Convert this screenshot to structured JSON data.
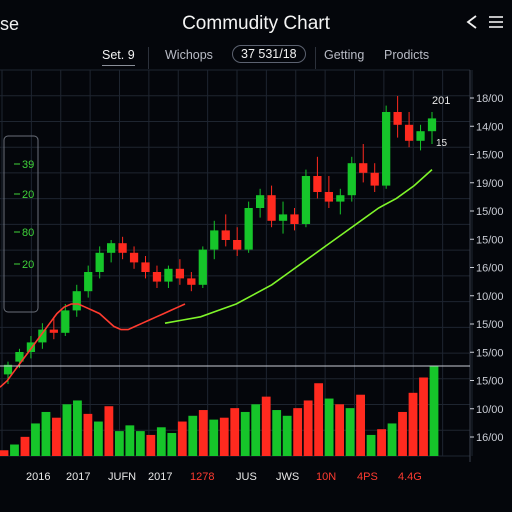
{
  "header": {
    "back_text": "se",
    "title": "Commudity Chart",
    "share_icon": "share-icon",
    "menu_icon": "menu-icon"
  },
  "tabs": [
    {
      "label": "Set.   9"
    },
    {
      "label": "Wichops"
    },
    {
      "label": "37 531/18"
    },
    {
      "label": "Getting"
    },
    {
      "label": "Prodicts"
    }
  ],
  "chart_data": {
    "type": "candlestick",
    "x_tick_labels": [
      {
        "text": "2016",
        "color": "#e8e8e8"
      },
      {
        "text": "2017",
        "color": "#e8e8e8"
      },
      {
        "text": "JUFN",
        "color": "#e8e8e8"
      },
      {
        "text": "2017",
        "color": "#e8e8e8"
      },
      {
        "text": "1278",
        "color": "#ff3b30"
      },
      {
        "text": "JUS",
        "color": "#e8e8e8"
      },
      {
        "text": "JWS",
        "color": "#e8e8e8"
      },
      {
        "text": "10N",
        "color": "#ff3b30"
      },
      {
        "text": "4PS",
        "color": "#ff3b30"
      },
      {
        "text": "4.4G",
        "color": "#ff3b30"
      }
    ],
    "y_tick_labels": [
      "18/00",
      "14/00",
      "15/00",
      "19/00",
      "15/00",
      "15/00",
      "16/00",
      "10/00",
      "15/00",
      "15/00",
      "15/00",
      "10/00",
      "16/00"
    ],
    "left_panel_labels": [
      "39",
      "20",
      "80",
      "20"
    ],
    "price_marker": "201",
    "price_marker2": "15",
    "ylim": [
      0,
      100
    ],
    "candles": [
      {
        "o": 8,
        "h": 12,
        "l": 5,
        "c": 11
      },
      {
        "o": 12,
        "h": 16,
        "l": 10,
        "c": 15
      },
      {
        "o": 15,
        "h": 20,
        "l": 13,
        "c": 18
      },
      {
        "o": 18,
        "h": 24,
        "l": 16,
        "c": 22
      },
      {
        "o": 22,
        "h": 26,
        "l": 19,
        "c": 21
      },
      {
        "o": 21,
        "h": 30,
        "l": 20,
        "c": 28
      },
      {
        "o": 28,
        "h": 36,
        "l": 26,
        "c": 34
      },
      {
        "o": 34,
        "h": 42,
        "l": 32,
        "c": 40
      },
      {
        "o": 40,
        "h": 48,
        "l": 38,
        "c": 46
      },
      {
        "o": 46,
        "h": 50,
        "l": 43,
        "c": 49
      },
      {
        "o": 49,
        "h": 51,
        "l": 44,
        "c": 46
      },
      {
        "o": 46,
        "h": 48,
        "l": 41,
        "c": 43
      },
      {
        "o": 43,
        "h": 45,
        "l": 38,
        "c": 40
      },
      {
        "o": 40,
        "h": 42,
        "l": 35,
        "c": 37
      },
      {
        "o": 37,
        "h": 42,
        "l": 35,
        "c": 41
      },
      {
        "o": 41,
        "h": 44,
        "l": 36,
        "c": 38
      },
      {
        "o": 38,
        "h": 40,
        "l": 34,
        "c": 36
      },
      {
        "o": 36,
        "h": 48,
        "l": 35,
        "c": 47
      },
      {
        "o": 47,
        "h": 56,
        "l": 44,
        "c": 53
      },
      {
        "o": 53,
        "h": 58,
        "l": 48,
        "c": 50
      },
      {
        "o": 50,
        "h": 54,
        "l": 45,
        "c": 47
      },
      {
        "o": 47,
        "h": 62,
        "l": 46,
        "c": 60
      },
      {
        "o": 60,
        "h": 66,
        "l": 57,
        "c": 64
      },
      {
        "o": 64,
        "h": 67,
        "l": 54,
        "c": 56
      },
      {
        "o": 56,
        "h": 62,
        "l": 52,
        "c": 58
      },
      {
        "o": 58,
        "h": 60,
        "l": 53,
        "c": 55
      },
      {
        "o": 55,
        "h": 72,
        "l": 54,
        "c": 70
      },
      {
        "o": 70,
        "h": 76,
        "l": 63,
        "c": 65
      },
      {
        "o": 65,
        "h": 70,
        "l": 60,
        "c": 62
      },
      {
        "o": 62,
        "h": 66,
        "l": 58,
        "c": 64
      },
      {
        "o": 64,
        "h": 76,
        "l": 62,
        "c": 74
      },
      {
        "o": 74,
        "h": 80,
        "l": 68,
        "c": 71
      },
      {
        "o": 71,
        "h": 74,
        "l": 65,
        "c": 67
      },
      {
        "o": 67,
        "h": 92,
        "l": 66,
        "c": 90
      },
      {
        "o": 90,
        "h": 95,
        "l": 82,
        "c": 86
      },
      {
        "o": 86,
        "h": 90,
        "l": 79,
        "c": 81
      },
      {
        "o": 81,
        "h": 86,
        "l": 78,
        "c": 84
      },
      {
        "o": 84,
        "h": 90,
        "l": 80,
        "c": 88
      }
    ],
    "ma_red": [
      4,
      6,
      9,
      12,
      15,
      18,
      21,
      24,
      27,
      29,
      30,
      30,
      29,
      28,
      27,
      25,
      23,
      22,
      22,
      23,
      24,
      25,
      26,
      27,
      28,
      29,
      30
    ],
    "ma_green": [
      24,
      25,
      26,
      28,
      30,
      33,
      36,
      40,
      44,
      48,
      52,
      56,
      60,
      63,
      67,
      72
    ],
    "volumes": [
      {
        "v": 6,
        "up": false
      },
      {
        "v": 12,
        "up": true
      },
      {
        "v": 20,
        "up": false
      },
      {
        "v": 34,
        "up": true
      },
      {
        "v": 46,
        "up": true
      },
      {
        "v": 40,
        "up": false
      },
      {
        "v": 54,
        "up": true
      },
      {
        "v": 58,
        "up": true
      },
      {
        "v": 44,
        "up": false
      },
      {
        "v": 36,
        "up": true
      },
      {
        "v": 52,
        "up": false
      },
      {
        "v": 26,
        "up": true
      },
      {
        "v": 32,
        "up": true
      },
      {
        "v": 26,
        "up": true
      },
      {
        "v": 22,
        "up": false
      },
      {
        "v": 30,
        "up": true
      },
      {
        "v": 24,
        "up": true
      },
      {
        "v": 36,
        "up": false
      },
      {
        "v": 42,
        "up": true
      },
      {
        "v": 48,
        "up": false
      },
      {
        "v": 38,
        "up": true
      },
      {
        "v": 40,
        "up": false
      },
      {
        "v": 50,
        "up": false
      },
      {
        "v": 46,
        "up": true
      },
      {
        "v": 54,
        "up": true
      },
      {
        "v": 62,
        "up": false
      },
      {
        "v": 48,
        "up": true
      },
      {
        "v": 42,
        "up": true
      },
      {
        "v": 50,
        "up": false
      },
      {
        "v": 58,
        "up": false
      },
      {
        "v": 76,
        "up": false
      },
      {
        "v": 60,
        "up": true
      },
      {
        "v": 54,
        "up": false
      },
      {
        "v": 50,
        "up": true
      },
      {
        "v": 64,
        "up": false
      },
      {
        "v": 22,
        "up": true
      },
      {
        "v": 28,
        "up": false
      },
      {
        "v": 34,
        "up": true
      },
      {
        "v": 46,
        "up": false
      },
      {
        "v": 66,
        "up": false
      },
      {
        "v": 82,
        "up": false
      },
      {
        "v": 94,
        "up": true
      }
    ],
    "colors": {
      "up": "#16c52a",
      "down": "#ff2a1f",
      "ma_red": "#ff3b2f",
      "ma_green": "#7ff52a",
      "grid": "#1e2530"
    }
  }
}
